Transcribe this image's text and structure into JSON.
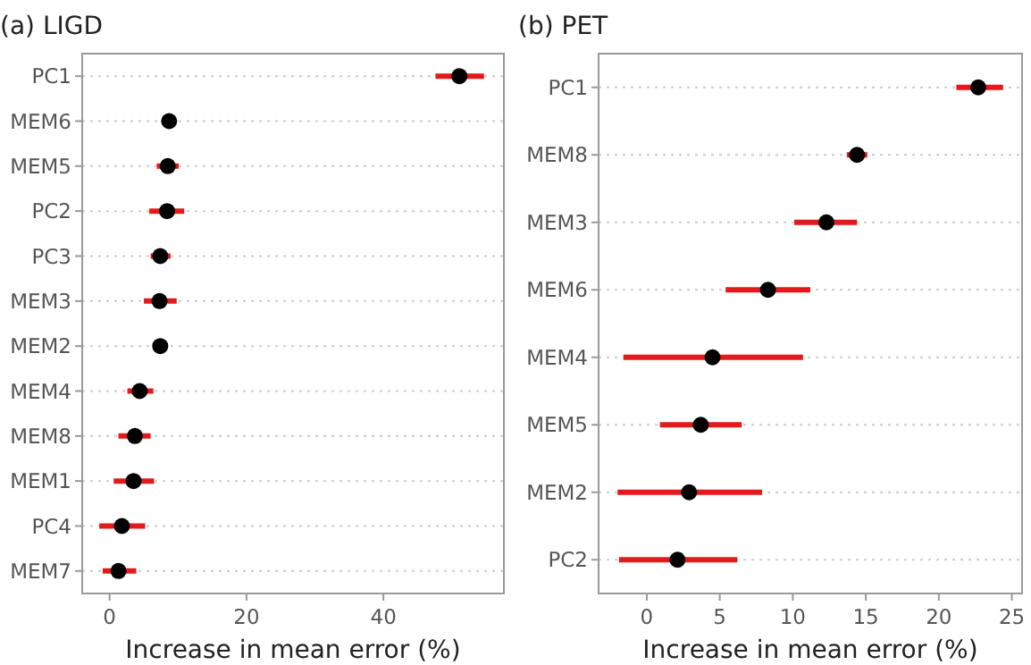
{
  "chart_data": [
    {
      "type": "scatter",
      "title": "(a) LIGD",
      "xlabel": "Increase in mean error (%)",
      "orientation": "horizontal",
      "grid": "y",
      "marker": "circle",
      "xlim": [
        -4,
        57.6
      ],
      "xticks": [
        0,
        20,
        40
      ],
      "categories": [
        "PC1",
        "MEM6",
        "MEM5",
        "PC2",
        "PC3",
        "MEM3",
        "MEM2",
        "MEM4",
        "MEM8",
        "MEM1",
        "PC4",
        "MEM7"
      ],
      "series": [
        {
          "color": "#000000",
          "values": [
            51.1,
            8.7,
            8.5,
            8.4,
            7.4,
            7.3,
            7.4,
            4.4,
            3.7,
            3.5,
            1.8,
            1.3
          ],
          "errors": [
            [
              47.6,
              54.7
            ],
            null,
            [
              6.9,
              10.1
            ],
            [
              5.8,
              10.9
            ],
            [
              6.0,
              8.9
            ],
            [
              5.0,
              9.8
            ],
            null,
            [
              2.6,
              6.4
            ],
            [
              1.3,
              6.0
            ],
            [
              0.6,
              6.5
            ],
            [
              -1.5,
              5.2
            ],
            [
              -1.0,
              3.9
            ]
          ]
        }
      ]
    },
    {
      "type": "scatter",
      "title": "(b) PET",
      "xlabel": "Increase in mean error (%)",
      "orientation": "horizontal",
      "grid": "y",
      "marker": "circle",
      "xlim": [
        -3.3,
        25.7
      ],
      "xticks": [
        0,
        5,
        10,
        15,
        20,
        25
      ],
      "categories": [
        "PC1",
        "MEM8",
        "MEM3",
        "MEM6",
        "MEM4",
        "MEM5",
        "MEM2",
        "PC2"
      ],
      "series": [
        {
          "color": "#000000",
          "values": [
            22.7,
            14.4,
            12.3,
            8.3,
            4.5,
            3.7,
            2.9,
            2.1
          ],
          "errors": [
            [
              21.2,
              24.4
            ],
            [
              13.7,
              15.1
            ],
            [
              10.1,
              14.4
            ],
            [
              5.4,
              11.2
            ],
            [
              -1.6,
              10.7
            ],
            [
              0.9,
              6.5
            ],
            [
              -2.0,
              7.9
            ],
            [
              -1.9,
              6.2
            ]
          ]
        }
      ]
    }
  ]
}
